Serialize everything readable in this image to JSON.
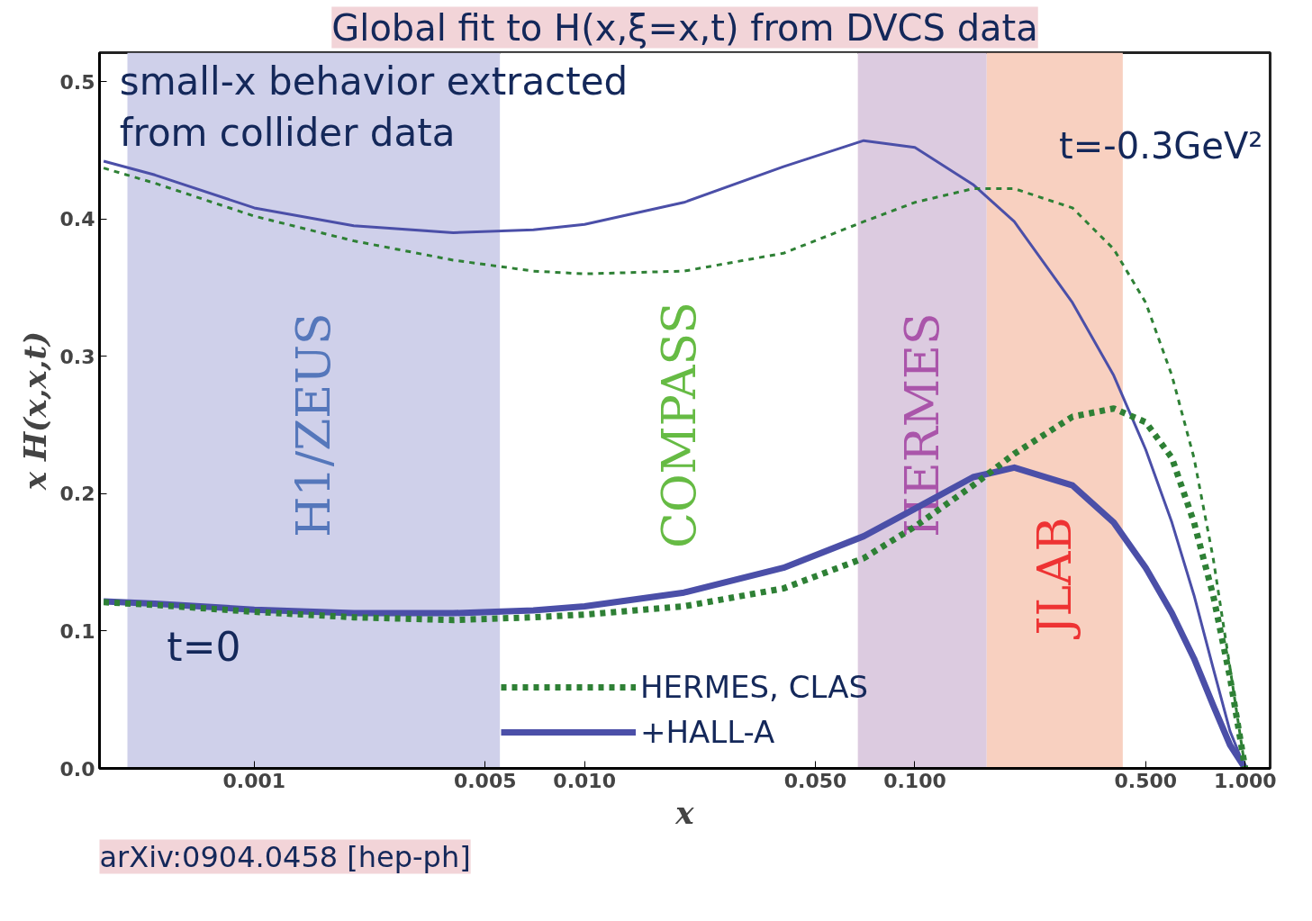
{
  "chart_data": {
    "type": "line",
    "title": "Global fit to H(x,ξ=x,t) from DVCS data",
    "xlabel": "x",
    "ylabel": "x H(x,x,t)",
    "log": "x",
    "grid": false,
    "legend": "bottom",
    "xlim": [
      0.00034,
      1.19
    ],
    "ylim": [
      0,
      0.521
    ],
    "xticks": [
      0.001,
      0.005,
      {
        "value": 0.01,
        "label": "0.010"
      },
      {
        "value": 0.05,
        "label": "0.050"
      },
      {
        "value": 0.1,
        "label": "0.100"
      },
      {
        "value": 0.5,
        "label": "0.500"
      },
      {
        "value": 1,
        "label": "1.000"
      }
    ],
    "yticks": [
      {
        "value": 0,
        "label": "0.0"
      },
      0.1,
      0.2,
      0.3,
      0.4,
      0.5
    ],
    "x": [
      0.00035,
      0.0005,
      0.001,
      0.002,
      0.004,
      0.007,
      0.01,
      0.02,
      0.04,
      0.07,
      0.1,
      0.15,
      0.2,
      0.3,
      0.4,
      0.5,
      0.6,
      0.7,
      0.8,
      0.9,
      1.0
    ],
    "series": [
      {
        "color": "#4b4fa8",
        "line_style": "solid",
        "values": [
          0.442,
          0.432,
          0.408,
          0.395,
          0.39,
          0.392,
          0.396,
          0.412,
          0.438,
          0.457,
          0.452,
          0.425,
          0.398,
          0.339,
          0.286,
          0.232,
          0.179,
          0.126,
          0.073,
          0.027,
          0
        ]
      },
      {
        "color": "#2e8035",
        "line_style": "dashed",
        "values": [
          0.437,
          0.426,
          0.402,
          0.384,
          0.37,
          0.362,
          0.36,
          0.362,
          0.375,
          0.398,
          0.412,
          0.422,
          0.422,
          0.408,
          0.378,
          0.339,
          0.286,
          0.226,
          0.153,
          0.073,
          0
        ]
      },
      {
        "name": "+HALL-A",
        "color": "#4b4fa8",
        "line_style": "solid",
        "values": [
          0.1215,
          0.12,
          0.1155,
          0.113,
          0.113,
          0.115,
          0.118,
          0.128,
          0.146,
          0.169,
          0.189,
          0.212,
          0.219,
          0.206,
          0.179,
          0.146,
          0.113,
          0.08,
          0.046,
          0.017,
          0
        ]
      },
      {
        "name": "HERMES, CLAS",
        "color": "#2e8035",
        "line_style": "dashed",
        "values": [
          0.121,
          0.119,
          0.114,
          0.11,
          0.108,
          0.11,
          0.112,
          0.118,
          0.131,
          0.153,
          0.176,
          0.206,
          0.229,
          0.256,
          0.262,
          0.252,
          0.226,
          0.179,
          0.126,
          0.066,
          0
        ]
      }
    ],
    "bands": [
      {
        "axis": "x",
        "from": 0.000413,
        "to": 0.00555,
        "label": "H1/ZEUS",
        "color": "#cfd0ea"
      },
      {
        "axis": "x",
        "from": 0.00555,
        "to": 0.0672,
        "label": "COMPASS",
        "color": "#ffffff"
      },
      {
        "axis": "x",
        "from": 0.0672,
        "to": 0.165,
        "label": "HERMES",
        "color": "#dccbe0"
      },
      {
        "axis": "x",
        "from": 0.165,
        "to": 0.426,
        "label": "JLAB",
        "color": "#f8d0c0"
      }
    ],
    "annotations": [
      "small-x behavior extracted\nfrom collider data",
      "t=0",
      "t=-0.3GeV²",
      "arXiv:0904.0458 [hep-ph]"
    ]
  }
}
